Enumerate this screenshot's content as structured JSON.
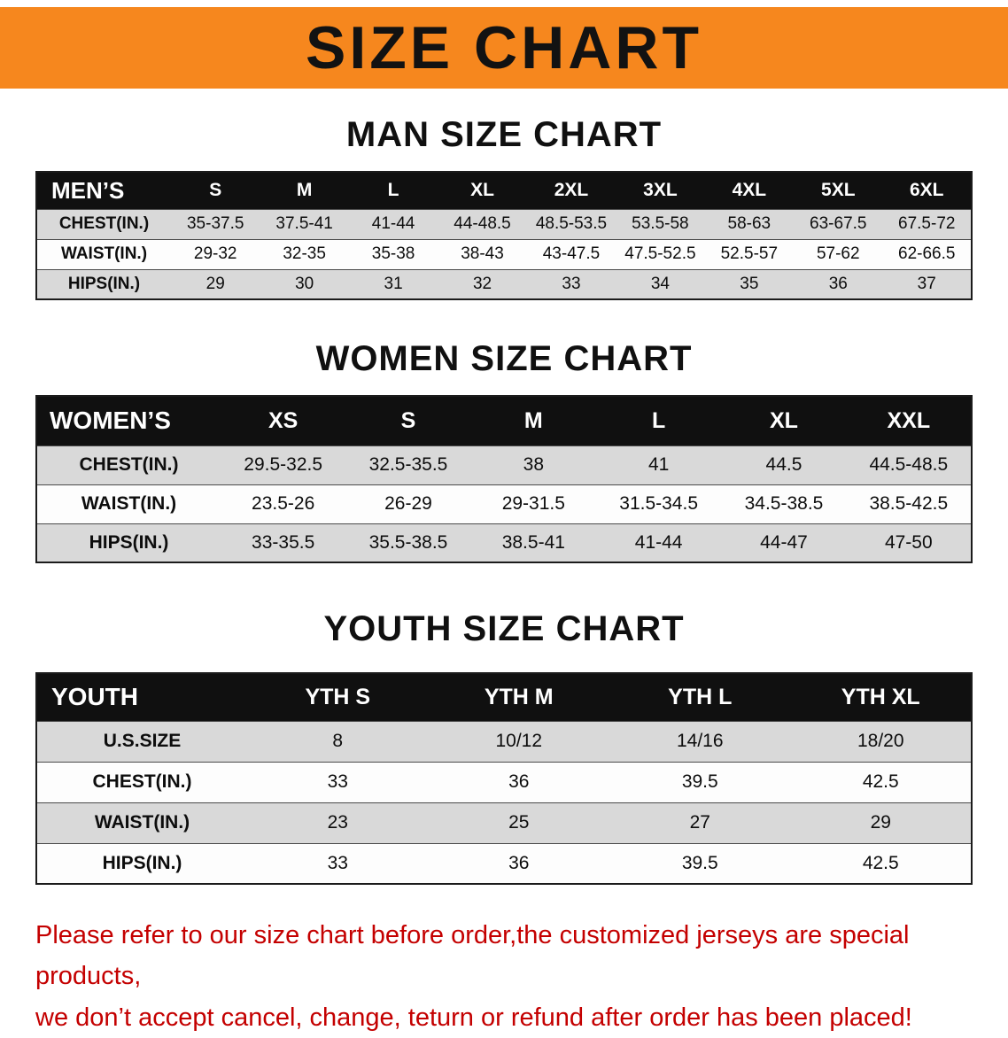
{
  "banner": {
    "title": "SIZE CHART"
  },
  "colors": {
    "banner_bg": "#F6871E",
    "table_header_bg": "#101010",
    "table_header_text": "#FFFFFF",
    "row_shaded": "#D9D9D9",
    "row_plain": "#FDFDFD",
    "disclaimer_text": "#C40000"
  },
  "sections": [
    {
      "heading": "MAN SIZE CHART",
      "table": {
        "title": "MEN’S",
        "header": [
          "MEN’S",
          "S",
          "M",
          "L",
          "XL",
          "2XL",
          "3XL",
          "4XL",
          "5XL",
          "6XL"
        ],
        "rows": [
          [
            "CHEST(IN.)",
            "35-37.5",
            "37.5-41",
            "41-44",
            "44-48.5",
            "48.5-53.5",
            "53.5-58",
            "58-63",
            "63-67.5",
            "67.5-72"
          ],
          [
            "WAIST(IN.)",
            "29-32",
            "32-35",
            "35-38",
            "38-43",
            "43-47.5",
            "47.5-52.5",
            "52.5-57",
            "57-62",
            "62-66.5"
          ],
          [
            "HIPS(IN.)",
            "29",
            "30",
            "31",
            "32",
            "33",
            "34",
            "35",
            "36",
            "37"
          ]
        ]
      }
    },
    {
      "heading": "WOMEN SIZE CHART",
      "table": {
        "title": "WOMEN’S",
        "header": [
          "WOMEN’S",
          "XS",
          "S",
          "M",
          "L",
          "XL",
          "XXL"
        ],
        "rows": [
          [
            "CHEST(IN.)",
            "29.5-32.5",
            "32.5-35.5",
            "38",
            "41",
            "44.5",
            "44.5-48.5"
          ],
          [
            "WAIST(IN.)",
            "23.5-26",
            "26-29",
            "29-31.5",
            "31.5-34.5",
            "34.5-38.5",
            "38.5-42.5"
          ],
          [
            "HIPS(IN.)",
            "33-35.5",
            "35.5-38.5",
            "38.5-41",
            "41-44",
            "44-47",
            "47-50"
          ]
        ]
      }
    },
    {
      "heading": "YOUTH SIZE CHART",
      "table": {
        "title": "YOUTH",
        "header": [
          "YOUTH",
          "YTH S",
          "YTH M",
          "YTH L",
          "YTH XL"
        ],
        "rows": [
          [
            "U.S.SIZE",
            "8",
            "10/12",
            "14/16",
            "18/20"
          ],
          [
            "CHEST(IN.)",
            "33",
            "36",
            "39.5",
            "42.5"
          ],
          [
            "WAIST(IN.)",
            "23",
            "25",
            "27",
            "29"
          ],
          [
            "HIPS(IN.)",
            "33",
            "36",
            "39.5",
            "42.5"
          ]
        ]
      }
    }
  ],
  "disclaimer": {
    "line1": "Please refer to our size chart before order,the customized jerseys are special products,",
    "line2": "we don’t accept cancel, change, teturn or refund after order has been placed!"
  }
}
